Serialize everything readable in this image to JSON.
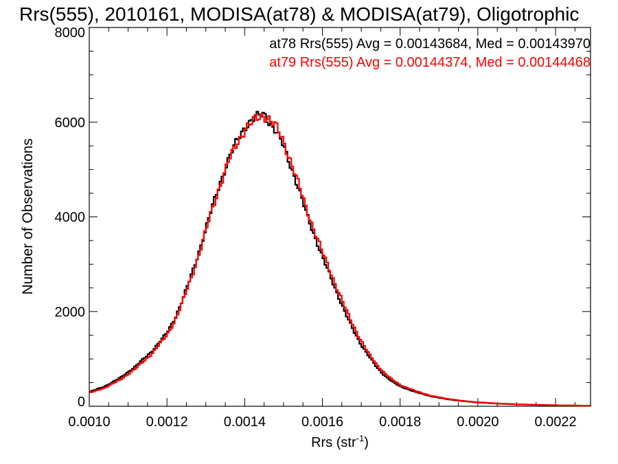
{
  "chart_data": {
    "type": "line",
    "title": "Rrs(555), 2010161, MODISA(at78) & MODISA(at79), Oligotrophic",
    "xlabel": "Rrs (str",
    "xlabel_sup": "-1",
    "xlabel_close": ")",
    "ylabel": "Number of Observations",
    "xlim": [
      0.001,
      0.00229
    ],
    "ylim": [
      0,
      8000
    ],
    "xticks": [
      0.001,
      0.0012,
      0.0014,
      0.0016,
      0.0018,
      0.002,
      0.0022
    ],
    "xtick_labels": [
      "0.0010",
      "0.0012",
      "0.0014",
      "0.0016",
      "0.0018",
      "0.0020",
      "0.0022"
    ],
    "yticks": [
      0,
      2000,
      4000,
      6000,
      8000
    ],
    "ytick_labels": [
      "0",
      "2000",
      "4000",
      "6000",
      "8000"
    ],
    "legend": {
      "placement": "top-right",
      "entries": [
        "at78 Rrs(555) Avg = 0.00143684, Med = 0.00143970",
        "at79 Rrs(555) Avg = 0.00144374, Med = 0.00144468"
      ]
    },
    "series": [
      {
        "color": "#000000",
        "style": "step",
        "x": [
          0.001,
          0.00104,
          0.00108,
          0.00112,
          0.00116,
          0.0012,
          0.00122,
          0.00124,
          0.00126,
          0.00128,
          0.0013,
          0.00132,
          0.00134,
          0.00136,
          0.00138,
          0.0014,
          0.00142,
          0.00144,
          0.00145,
          0.00146,
          0.00148,
          0.0015,
          0.00152,
          0.00154,
          0.00156,
          0.00158,
          0.0016,
          0.00162,
          0.00164,
          0.00166,
          0.00168,
          0.0017,
          0.00172,
          0.00174,
          0.00176,
          0.00178,
          0.0018,
          0.00184,
          0.00188,
          0.00192,
          0.00196,
          0.002,
          0.00205,
          0.0021,
          0.00215,
          0.0022,
          0.00225,
          0.00229
        ],
        "y": [
          300,
          420,
          600,
          850,
          1150,
          1550,
          1850,
          2250,
          2700,
          3200,
          3750,
          4300,
          4800,
          5250,
          5600,
          5900,
          6050,
          6150,
          6180,
          6050,
          5800,
          5500,
          5050,
          4550,
          4050,
          3600,
          3150,
          2750,
          2350,
          1950,
          1600,
          1300,
          1050,
          820,
          650,
          520,
          420,
          300,
          210,
          150,
          110,
          80,
          55,
          40,
          30,
          20,
          15,
          10
        ]
      },
      {
        "color": "#ff0000",
        "style": "step",
        "x": [
          0.001,
          0.00104,
          0.00108,
          0.00112,
          0.00116,
          0.0012,
          0.00122,
          0.00124,
          0.00126,
          0.00128,
          0.0013,
          0.00132,
          0.00134,
          0.00136,
          0.00138,
          0.0014,
          0.00142,
          0.00144,
          0.00145,
          0.00146,
          0.00148,
          0.0015,
          0.00152,
          0.00154,
          0.00156,
          0.00158,
          0.0016,
          0.00162,
          0.00164,
          0.00166,
          0.00168,
          0.0017,
          0.00172,
          0.00174,
          0.00176,
          0.00178,
          0.0018,
          0.00184,
          0.00188,
          0.00192,
          0.00196,
          0.002,
          0.00205,
          0.0021,
          0.00215,
          0.0022,
          0.00225,
          0.00229
        ],
        "y": [
          280,
          390,
          560,
          800,
          1100,
          1500,
          1800,
          2200,
          2650,
          3150,
          3700,
          4250,
          4750,
          5200,
          5550,
          5850,
          6000,
          6120,
          6150,
          6100,
          5900,
          5600,
          5150,
          4650,
          4150,
          3700,
          3250,
          2850,
          2450,
          2050,
          1700,
          1380,
          1100,
          880,
          700,
          560,
          450,
          320,
          220,
          160,
          115,
          85,
          60,
          42,
          32,
          22,
          16,
          10
        ]
      }
    ]
  }
}
